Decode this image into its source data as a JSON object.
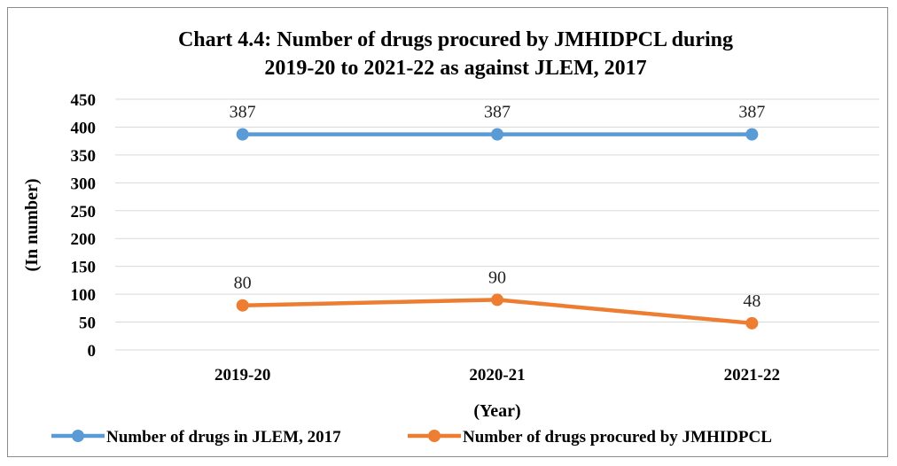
{
  "chart_data": {
    "type": "line",
    "title_line1": "Chart 4.4: Number of drugs procured by JMHIDPCL during",
    "title_line2": "2019-20 to 2021-22 as against JLEM, 2017",
    "xlabel": "(Year)",
    "ylabel": "(In number)",
    "categories": [
      "2019-20",
      "2020-21",
      "2021-22"
    ],
    "ylim": [
      0,
      450
    ],
    "yticks": [
      0,
      50,
      100,
      150,
      200,
      250,
      300,
      350,
      400,
      450
    ],
    "grid": true,
    "legend_position": "bottom",
    "series": [
      {
        "name": "Number of drugs in JLEM, 2017",
        "values": [
          387,
          387,
          387
        ],
        "color": "#5b9bd5"
      },
      {
        "name": "Number of drugs procured by JMHIDPCL",
        "values": [
          80,
          90,
          48
        ],
        "color": "#ed7d31"
      }
    ]
  }
}
